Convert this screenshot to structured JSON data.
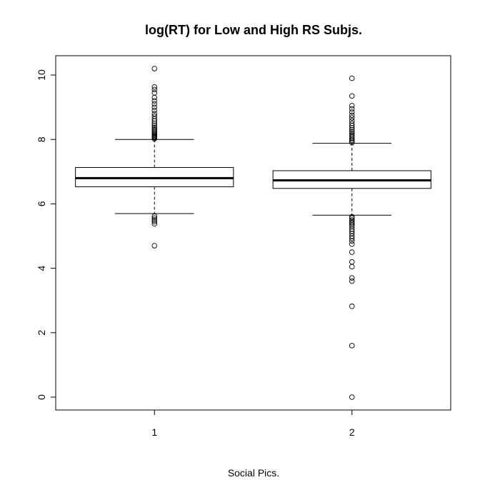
{
  "chart_data": {
    "type": "box",
    "title": "log(RT) for Low and High RS Subjs.",
    "xlabel": "Social Pics.",
    "ylabel": "",
    "ylim": [
      -0.4,
      10.6
    ],
    "yticks": [
      "0",
      "2",
      "4",
      "6",
      "8",
      "10"
    ],
    "categories": [
      "1",
      "2"
    ],
    "boxes": [
      {
        "category": "1",
        "whisker_low": 5.7,
        "q1": 6.53,
        "median": 6.8,
        "q3": 7.13,
        "whisker_high": 8.0,
        "outliers_high": [
          8.02,
          8.05,
          8.08,
          8.1,
          8.13,
          8.16,
          8.2,
          8.24,
          8.28,
          8.33,
          8.38,
          8.44,
          8.5,
          8.57,
          8.64,
          8.72,
          8.8,
          8.9,
          9.0,
          9.1,
          9.2,
          9.3,
          9.45,
          9.55,
          9.63,
          10.2
        ],
        "outliers_low": [
          5.62,
          5.56,
          5.5,
          5.45,
          5.38,
          4.7
        ]
      },
      {
        "category": "2",
        "whisker_low": 5.65,
        "q1": 6.48,
        "median": 6.73,
        "q3": 7.03,
        "whisker_high": 7.88,
        "outliers_high": [
          7.9,
          7.94,
          7.98,
          8.03,
          8.08,
          8.13,
          8.18,
          8.24,
          8.3,
          8.36,
          8.43,
          8.5,
          8.58,
          8.67,
          8.75,
          8.85,
          8.95,
          9.05,
          9.35,
          9.9
        ],
        "outliers_low": [
          5.6,
          5.56,
          5.5,
          5.45,
          5.4,
          5.35,
          5.3,
          5.22,
          5.15,
          5.08,
          5.0,
          4.93,
          4.85,
          4.75,
          4.5,
          4.2,
          4.05,
          3.7,
          3.6,
          2.82,
          1.6,
          0.0
        ]
      }
    ]
  }
}
